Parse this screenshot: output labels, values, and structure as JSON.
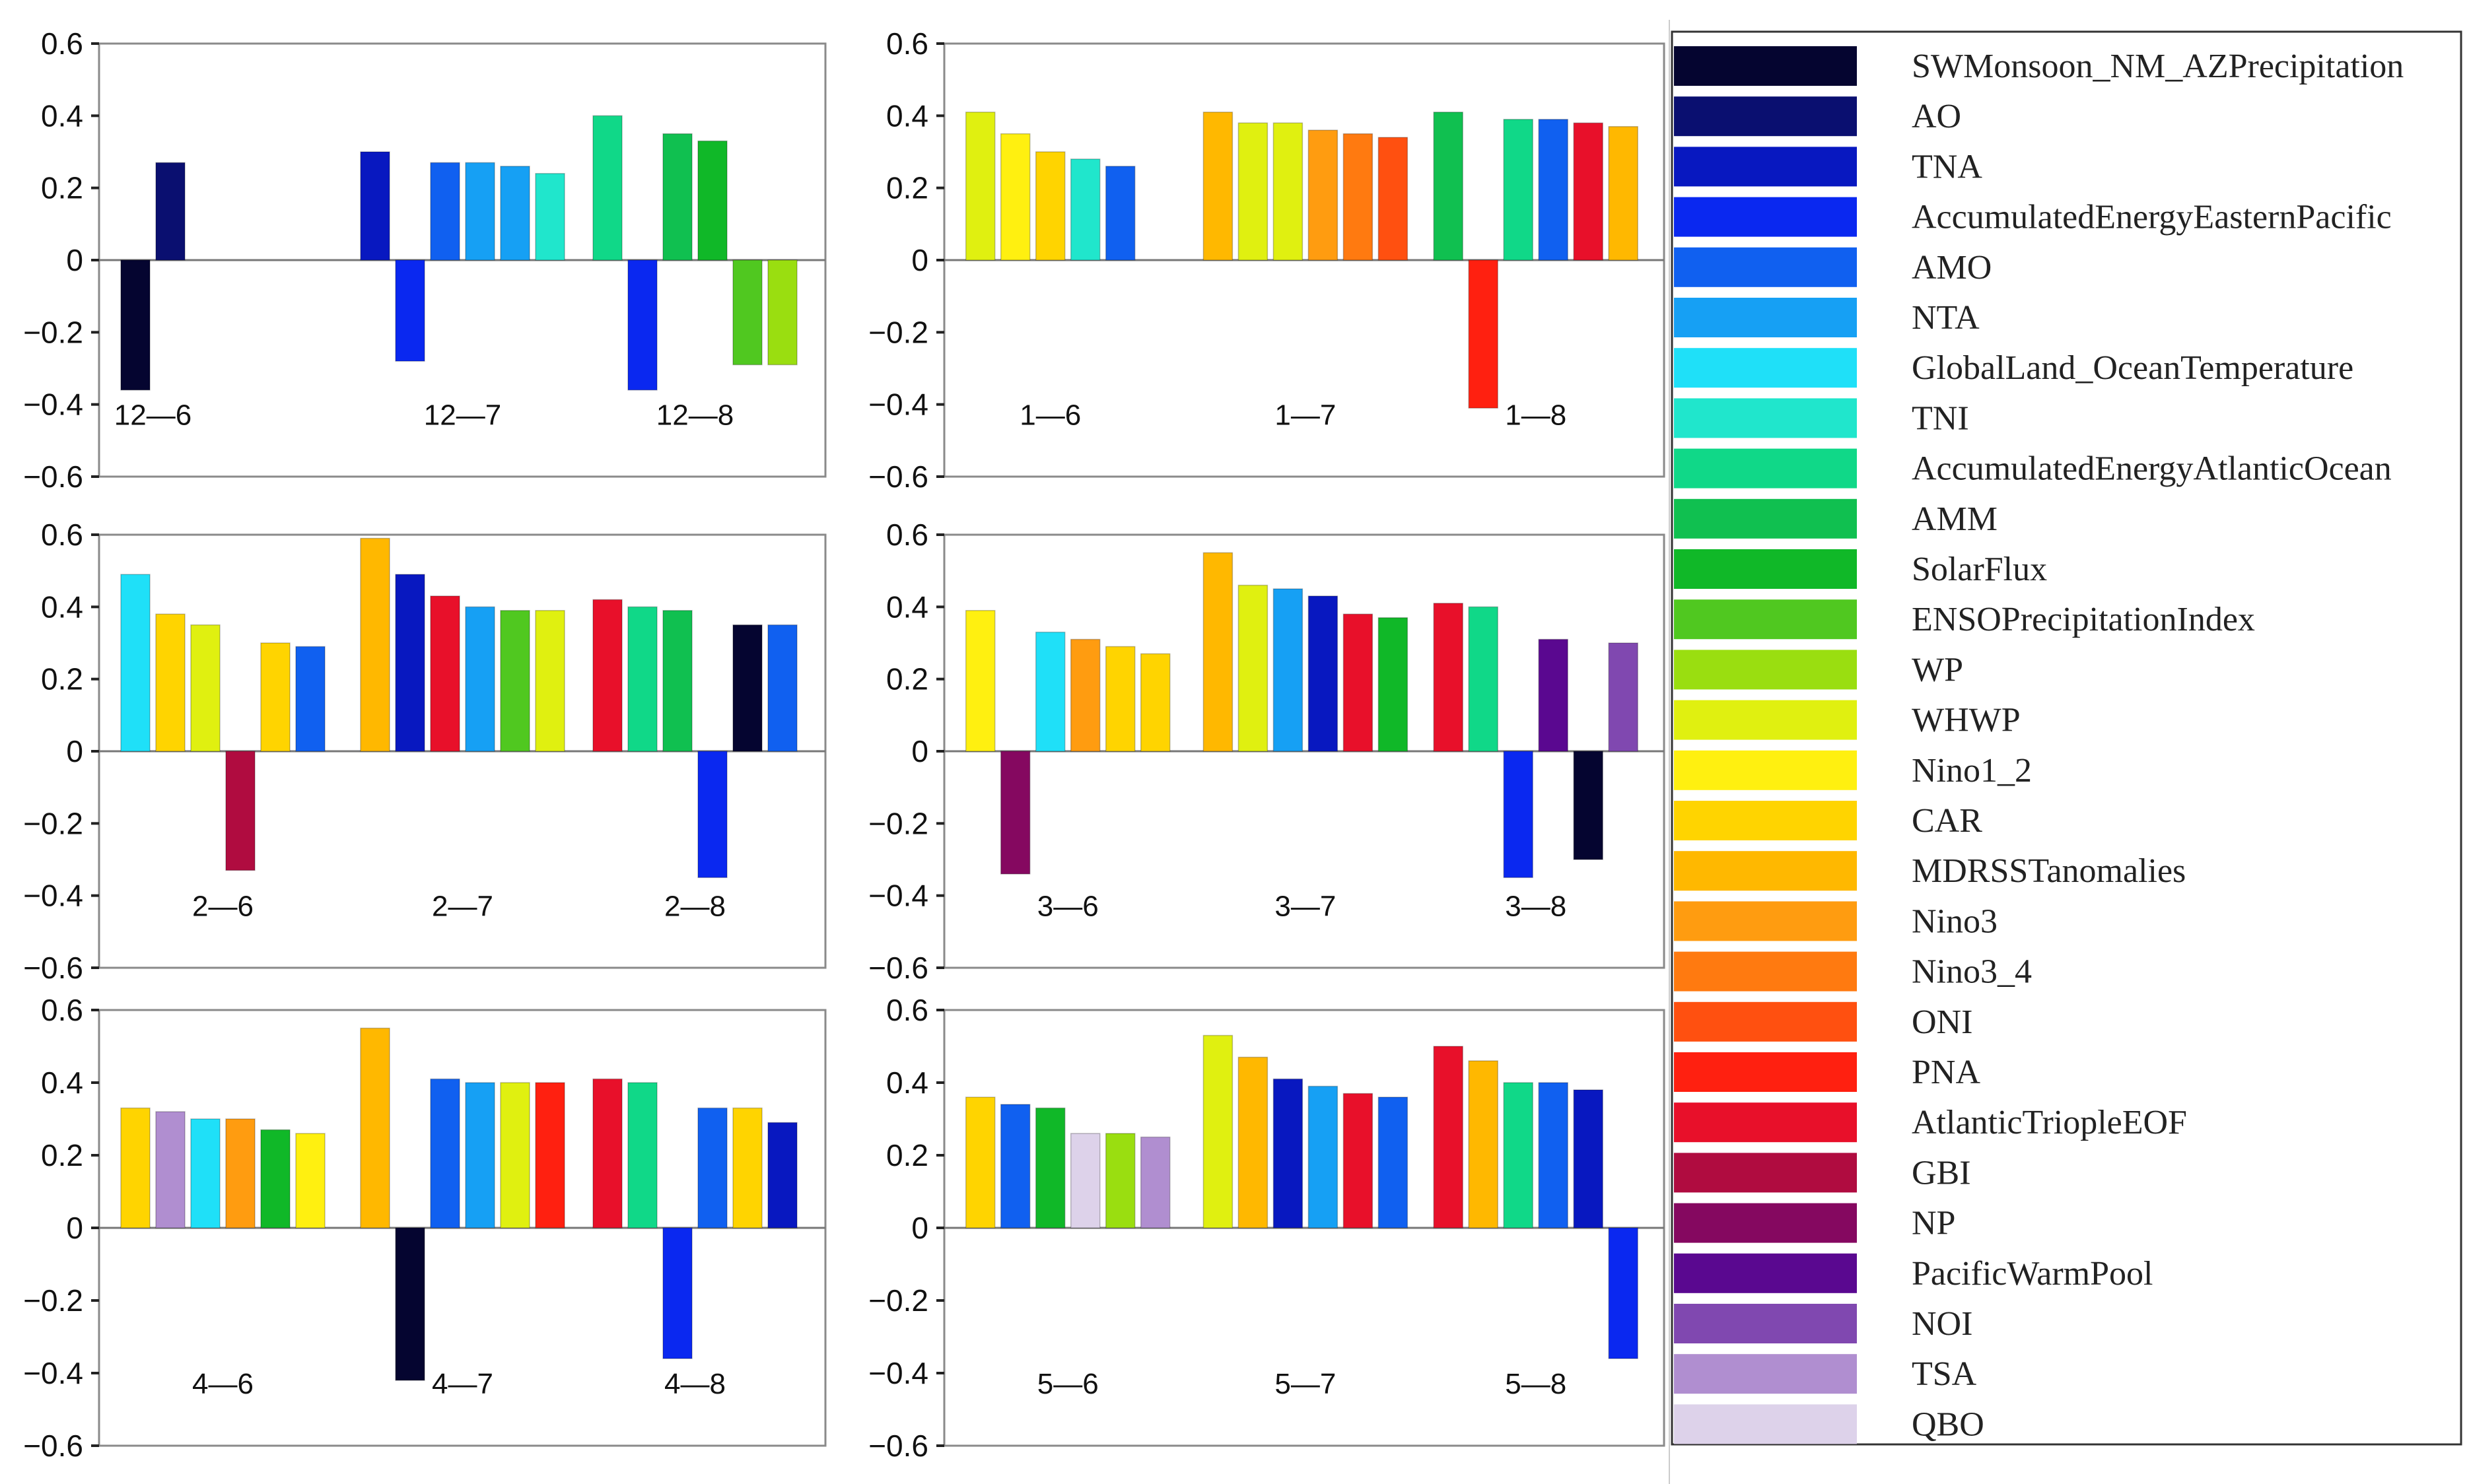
{
  "chart_data": {
    "type": "bar",
    "ylim": [
      -0.6,
      0.6
    ],
    "yticks": [
      0.6,
      0.4,
      0.2,
      0,
      -0.2,
      -0.4,
      -0.6
    ],
    "ytick_labels": [
      "0.6",
      "0.4",
      "0.2",
      "0",
      "−0.2",
      "−0.4",
      "−0.6"
    ],
    "legend": [
      {
        "name": "SWMonsoon_NM_AZPrecipitation",
        "color": "#050530"
      },
      {
        "name": "AO",
        "color": "#0a0f70"
      },
      {
        "name": "TNA",
        "color": "#0818c0"
      },
      {
        "name": "AccumulatedEnergyEasternPacific",
        "color": "#0a28f0"
      },
      {
        "name": "AMO",
        "color": "#1060f0"
      },
      {
        "name": "NTA",
        "color": "#16a0f4"
      },
      {
        "name": "GlobalLand_OceanTemperature",
        "color": "#1fe0f8"
      },
      {
        "name": "TNI",
        "color": "#20e6cc"
      },
      {
        "name": "AccumulatedEnergyAtlanticOcean",
        "color": "#10d888"
      },
      {
        "name": "AMM",
        "color": "#10c050"
      },
      {
        "name": "SolarFlux",
        "color": "#10b828"
      },
      {
        "name": "ENSOPrecipitationIndex",
        "color": "#50c820"
      },
      {
        "name": "WP",
        "color": "#9ade10"
      },
      {
        "name": "WHWP",
        "color": "#e0f010"
      },
      {
        "name": "Nino1_2",
        "color": "#fff010"
      },
      {
        "name": "CAR",
        "color": "#ffd400"
      },
      {
        "name": "MDRSSTanomalies",
        "color": "#ffb800"
      },
      {
        "name": "Nino3",
        "color": "#ff9c10"
      },
      {
        "name": "Nino3_4",
        "color": "#ff7a10"
      },
      {
        "name": "ONI",
        "color": "#ff5010"
      },
      {
        "name": "PNA",
        "color": "#ff2010"
      },
      {
        "name": "AtlanticTriopleEOF",
        "color": "#e8102a"
      },
      {
        "name": "GBI",
        "color": "#b00c40"
      },
      {
        "name": "NP",
        "color": "#850860"
      },
      {
        "name": "PacificWarmPool",
        "color": "#5a0890"
      },
      {
        "name": "NOI",
        "color": "#8048b0"
      },
      {
        "name": "TSA",
        "color": "#b08ed0"
      },
      {
        "name": "QBO",
        "color": "#ddd2ea"
      }
    ],
    "panels": [
      {
        "groups": [
          {
            "label": "12—6",
            "bars": [
              {
                "s": "SWMonsoon_NM_AZPrecipitation",
                "v": -0.36
              },
              {
                "s": "AO",
                "v": 0.27
              }
            ]
          },
          {
            "label": "12—7",
            "bars": [
              {
                "s": "TNA",
                "v": 0.3
              },
              {
                "s": "AccumulatedEnergyEasternPacific",
                "v": -0.28
              },
              {
                "s": "AMO",
                "v": 0.27
              },
              {
                "s": "NTA",
                "v": 0.27
              },
              {
                "s": "NTA",
                "v": 0.26
              },
              {
                "s": "TNI",
                "v": 0.24
              }
            ]
          },
          {
            "label": "12—8",
            "bars": [
              {
                "s": "AccumulatedEnergyAtlanticOcean",
                "v": 0.4
              },
              {
                "s": "AccumulatedEnergyEasternPacific",
                "v": -0.36
              },
              {
                "s": "AMM",
                "v": 0.35
              },
              {
                "s": "SolarFlux",
                "v": 0.33
              },
              {
                "s": "ENSOPrecipitationIndex",
                "v": -0.29
              },
              {
                "s": "WP",
                "v": -0.29
              }
            ]
          }
        ]
      },
      {
        "groups": [
          {
            "label": "1—6",
            "bars": [
              {
                "s": "WHWP",
                "v": 0.41
              },
              {
                "s": "Nino1_2",
                "v": 0.35
              },
              {
                "s": "CAR",
                "v": 0.3
              },
              {
                "s": "TNI",
                "v": 0.28
              },
              {
                "s": "AMO",
                "v": 0.26
              }
            ]
          },
          {
            "label": "1—7",
            "bars": [
              {
                "s": "MDRSSTanomalies",
                "v": 0.41
              },
              {
                "s": "WHWP",
                "v": 0.38
              },
              {
                "s": "WHWP",
                "v": 0.38
              },
              {
                "s": "Nino3",
                "v": 0.36
              },
              {
                "s": "Nino3_4",
                "v": 0.35
              },
              {
                "s": "ONI",
                "v": 0.34
              }
            ]
          },
          {
            "label": "1—8",
            "bars": [
              {
                "s": "AMM",
                "v": 0.41
              },
              {
                "s": "PNA",
                "v": -0.41
              },
              {
                "s": "AccumulatedEnergyAtlanticOcean",
                "v": 0.39
              },
              {
                "s": "AMO",
                "v": 0.39
              },
              {
                "s": "AtlanticTriopleEOF",
                "v": 0.38
              },
              {
                "s": "MDRSSTanomalies",
                "v": 0.37
              }
            ]
          }
        ]
      },
      {
        "groups": [
          {
            "label": "2—6",
            "bars": [
              {
                "s": "GlobalLand_OceanTemperature",
                "v": 0.49
              },
              {
                "s": "CAR",
                "v": 0.38
              },
              {
                "s": "WHWP",
                "v": 0.35
              },
              {
                "s": "GBI",
                "v": -0.33
              },
              {
                "s": "CAR",
                "v": 0.3
              },
              {
                "s": "AMO",
                "v": 0.29
              }
            ]
          },
          {
            "label": "2—7",
            "bars": [
              {
                "s": "MDRSSTanomalies",
                "v": 0.59
              },
              {
                "s": "TNA",
                "v": 0.49
              },
              {
                "s": "AtlanticTriopleEOF",
                "v": 0.43
              },
              {
                "s": "NTA",
                "v": 0.4
              },
              {
                "s": "ENSOPrecipitationIndex",
                "v": 0.39
              },
              {
                "s": "WHWP",
                "v": 0.39
              }
            ]
          },
          {
            "label": "2—8",
            "bars": [
              {
                "s": "AtlanticTriopleEOF",
                "v": 0.42
              },
              {
                "s": "AccumulatedEnergyAtlanticOcean",
                "v": 0.4
              },
              {
                "s": "AMM",
                "v": 0.39
              },
              {
                "s": "AccumulatedEnergyEasternPacific",
                "v": -0.35
              },
              {
                "s": "SWMonsoon_NM_AZPrecipitation",
                "v": 0.35
              },
              {
                "s": "AMO",
                "v": 0.35
              }
            ]
          }
        ]
      },
      {
        "groups": [
          {
            "label": "3—6",
            "bars": [
              {
                "s": "Nino1_2",
                "v": 0.39
              },
              {
                "s": "NP",
                "v": -0.34
              },
              {
                "s": "GlobalLand_OceanTemperature",
                "v": 0.33
              },
              {
                "s": "Nino3",
                "v": 0.31
              },
              {
                "s": "CAR",
                "v": 0.29
              },
              {
                "s": "CAR",
                "v": 0.27
              }
            ]
          },
          {
            "label": "3—7",
            "bars": [
              {
                "s": "MDRSSTanomalies",
                "v": 0.55
              },
              {
                "s": "WHWP",
                "v": 0.46
              },
              {
                "s": "NTA",
                "v": 0.45
              },
              {
                "s": "TNA",
                "v": 0.43
              },
              {
                "s": "AtlanticTriopleEOF",
                "v": 0.38
              },
              {
                "s": "SolarFlux",
                "v": 0.37
              }
            ]
          },
          {
            "label": "3—8",
            "bars": [
              {
                "s": "AtlanticTriopleEOF",
                "v": 0.41
              },
              {
                "s": "AccumulatedEnergyAtlanticOcean",
                "v": 0.4
              },
              {
                "s": "AccumulatedEnergyEasternPacific",
                "v": -0.35
              },
              {
                "s": "PacificWarmPool",
                "v": 0.31
              },
              {
                "s": "SWMonsoon_NM_AZPrecipitation",
                "v": -0.3
              },
              {
                "s": "NOI",
                "v": 0.3
              }
            ]
          }
        ]
      },
      {
        "groups": [
          {
            "label": "4—6",
            "bars": [
              {
                "s": "CAR",
                "v": 0.33
              },
              {
                "s": "TSA",
                "v": 0.32
              },
              {
                "s": "GlobalLand_OceanTemperature",
                "v": 0.3
              },
              {
                "s": "Nino3",
                "v": 0.3
              },
              {
                "s": "SolarFlux",
                "v": 0.27
              },
              {
                "s": "Nino1_2",
                "v": 0.26
              }
            ]
          },
          {
            "label": "4—7",
            "bars": [
              {
                "s": "MDRSSTanomalies",
                "v": 0.55
              },
              {
                "s": "SWMonsoon_NM_AZPrecipitation",
                "v": -0.42
              },
              {
                "s": "AMO",
                "v": 0.41
              },
              {
                "s": "NTA",
                "v": 0.4
              },
              {
                "s": "WHWP",
                "v": 0.4
              },
              {
                "s": "PNA",
                "v": 0.4
              }
            ]
          },
          {
            "label": "4—8",
            "bars": [
              {
                "s": "AtlanticTriopleEOF",
                "v": 0.41
              },
              {
                "s": "AccumulatedEnergyAtlanticOcean",
                "v": 0.4
              },
              {
                "s": "AccumulatedEnergyEasternPacific",
                "v": -0.36
              },
              {
                "s": "AMO",
                "v": 0.33
              },
              {
                "s": "CAR",
                "v": 0.33
              },
              {
                "s": "TNA",
                "v": 0.29
              }
            ]
          }
        ]
      },
      {
        "groups": [
          {
            "label": "5—6",
            "bars": [
              {
                "s": "CAR",
                "v": 0.36
              },
              {
                "s": "AMO",
                "v": 0.34
              },
              {
                "s": "SolarFlux",
                "v": 0.33
              },
              {
                "s": "QBO",
                "v": 0.26
              },
              {
                "s": "WP",
                "v": 0.26
              },
              {
                "s": "TSA",
                "v": 0.25
              }
            ]
          },
          {
            "label": "5—7",
            "bars": [
              {
                "s": "WHWP",
                "v": 0.53
              },
              {
                "s": "MDRSSTanomalies",
                "v": 0.47
              },
              {
                "s": "TNA",
                "v": 0.41
              },
              {
                "s": "NTA",
                "v": 0.39
              },
              {
                "s": "AtlanticTriopleEOF",
                "v": 0.37
              },
              {
                "s": "AMO",
                "v": 0.36
              }
            ]
          },
          {
            "label": "5—8",
            "bars": [
              {
                "s": "AtlanticTriopleEOF",
                "v": 0.5
              },
              {
                "s": "MDRSSTanomalies",
                "v": 0.46
              },
              {
                "s": "AccumulatedEnergyAtlanticOcean",
                "v": 0.4
              },
              {
                "s": "AMO",
                "v": 0.4
              },
              {
                "s": "TNA",
                "v": 0.38
              },
              {
                "s": "AccumulatedEnergyEasternPacific",
                "v": -0.36
              }
            ]
          }
        ]
      }
    ]
  }
}
